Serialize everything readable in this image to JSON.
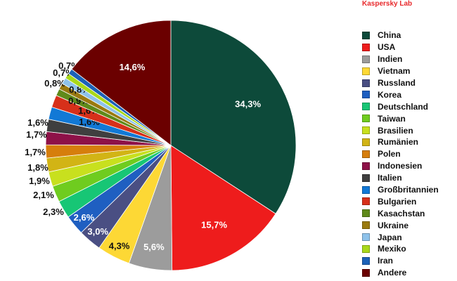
{
  "brand": "Kaspersky Lab",
  "chart_data": {
    "type": "pie",
    "start_angle_deg": 0,
    "direction": "clockwise",
    "slices": [
      {
        "name": "China",
        "value": 34.3,
        "label": "34,3%",
        "color": "#0d4a3a"
      },
      {
        "name": "USA",
        "value": 15.7,
        "label": "15,7%",
        "color": "#ee1c1c"
      },
      {
        "name": "Indien",
        "value": 5.6,
        "label": "5,6%",
        "color": "#9c9c9c"
      },
      {
        "name": "Vietnam",
        "value": 4.3,
        "label": "4,3%",
        "color": "#fdd835"
      },
      {
        "name": "Russland",
        "value": 3.0,
        "label": "3,0%",
        "color": "#4a4f83"
      },
      {
        "name": "Korea",
        "value": 2.6,
        "label": "2,6%",
        "color": "#1f5fc1"
      },
      {
        "name": "Deutschland",
        "value": 2.3,
        "label": "2,3%",
        "color": "#17c675"
      },
      {
        "name": "Taiwan",
        "value": 2.1,
        "label": "2,1%",
        "color": "#6fcc1f"
      },
      {
        "name": "Brasilien",
        "value": 1.9,
        "label": "1,9%",
        "color": "#c8e01e"
      },
      {
        "name": "Rumänien",
        "value": 1.8,
        "label": "1,8%",
        "color": "#d2b415"
      },
      {
        "name": "Polen",
        "value": 1.7,
        "label": "1,7%",
        "color": "#d67e0c"
      },
      {
        "name": "Indonesien",
        "value": 1.7,
        "label": "1,7%",
        "color": "#8e1148"
      },
      {
        "name": "Italien",
        "value": 1.6,
        "label": "1,6%",
        "color": "#3f3f3f"
      },
      {
        "name": "Großbritannien",
        "value": 1.6,
        "label": "1,6%",
        "color": "#1279d6"
      },
      {
        "name": "Bulgarien",
        "value": 1.6,
        "label": "1,6%",
        "color": "#d7301a"
      },
      {
        "name": "Kasachstan",
        "value": 0.9,
        "label": "0,9%",
        "color": "#5f8a1a"
      },
      {
        "name": "Ukraine",
        "value": 0.8,
        "label": "0,8%",
        "color": "#9a7a10"
      },
      {
        "name": "Japan",
        "value": 0.8,
        "label": "0,8%",
        "color": "#8ec2ea"
      },
      {
        "name": "Mexiko",
        "value": 0.7,
        "label": "0,7%",
        "color": "#a9d81a"
      },
      {
        "name": "Iran",
        "value": 0.7,
        "label": "0,7%",
        "color": "#1c62b8"
      },
      {
        "name": "Andere",
        "value": 14.6,
        "label": "14,6%",
        "color": "#6b0000"
      }
    ]
  }
}
